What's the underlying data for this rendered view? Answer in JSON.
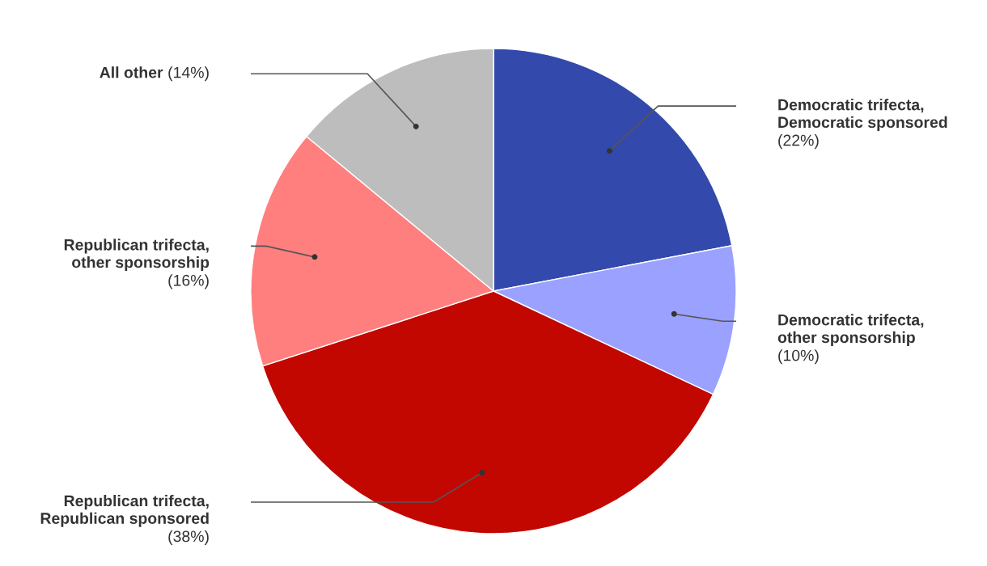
{
  "chart_data": {
    "type": "pie",
    "categories": [
      "Democratic trifecta, Democratic sponsored",
      "Democratic trifecta, other sponsorship",
      "Republican trifecta, Republican sponsored",
      "Republican trifecta, other sponsorship",
      "All other"
    ],
    "values": [
      22,
      10,
      38,
      16,
      14
    ],
    "value_labels": [
      "(22%)",
      "(10%)",
      "(38%)",
      "(16%)",
      "(14%)"
    ],
    "colors": [
      "#3349ab",
      "#9aa1fe",
      "#c10700",
      "#ff7f7f",
      "#bdbdbd"
    ]
  }
}
